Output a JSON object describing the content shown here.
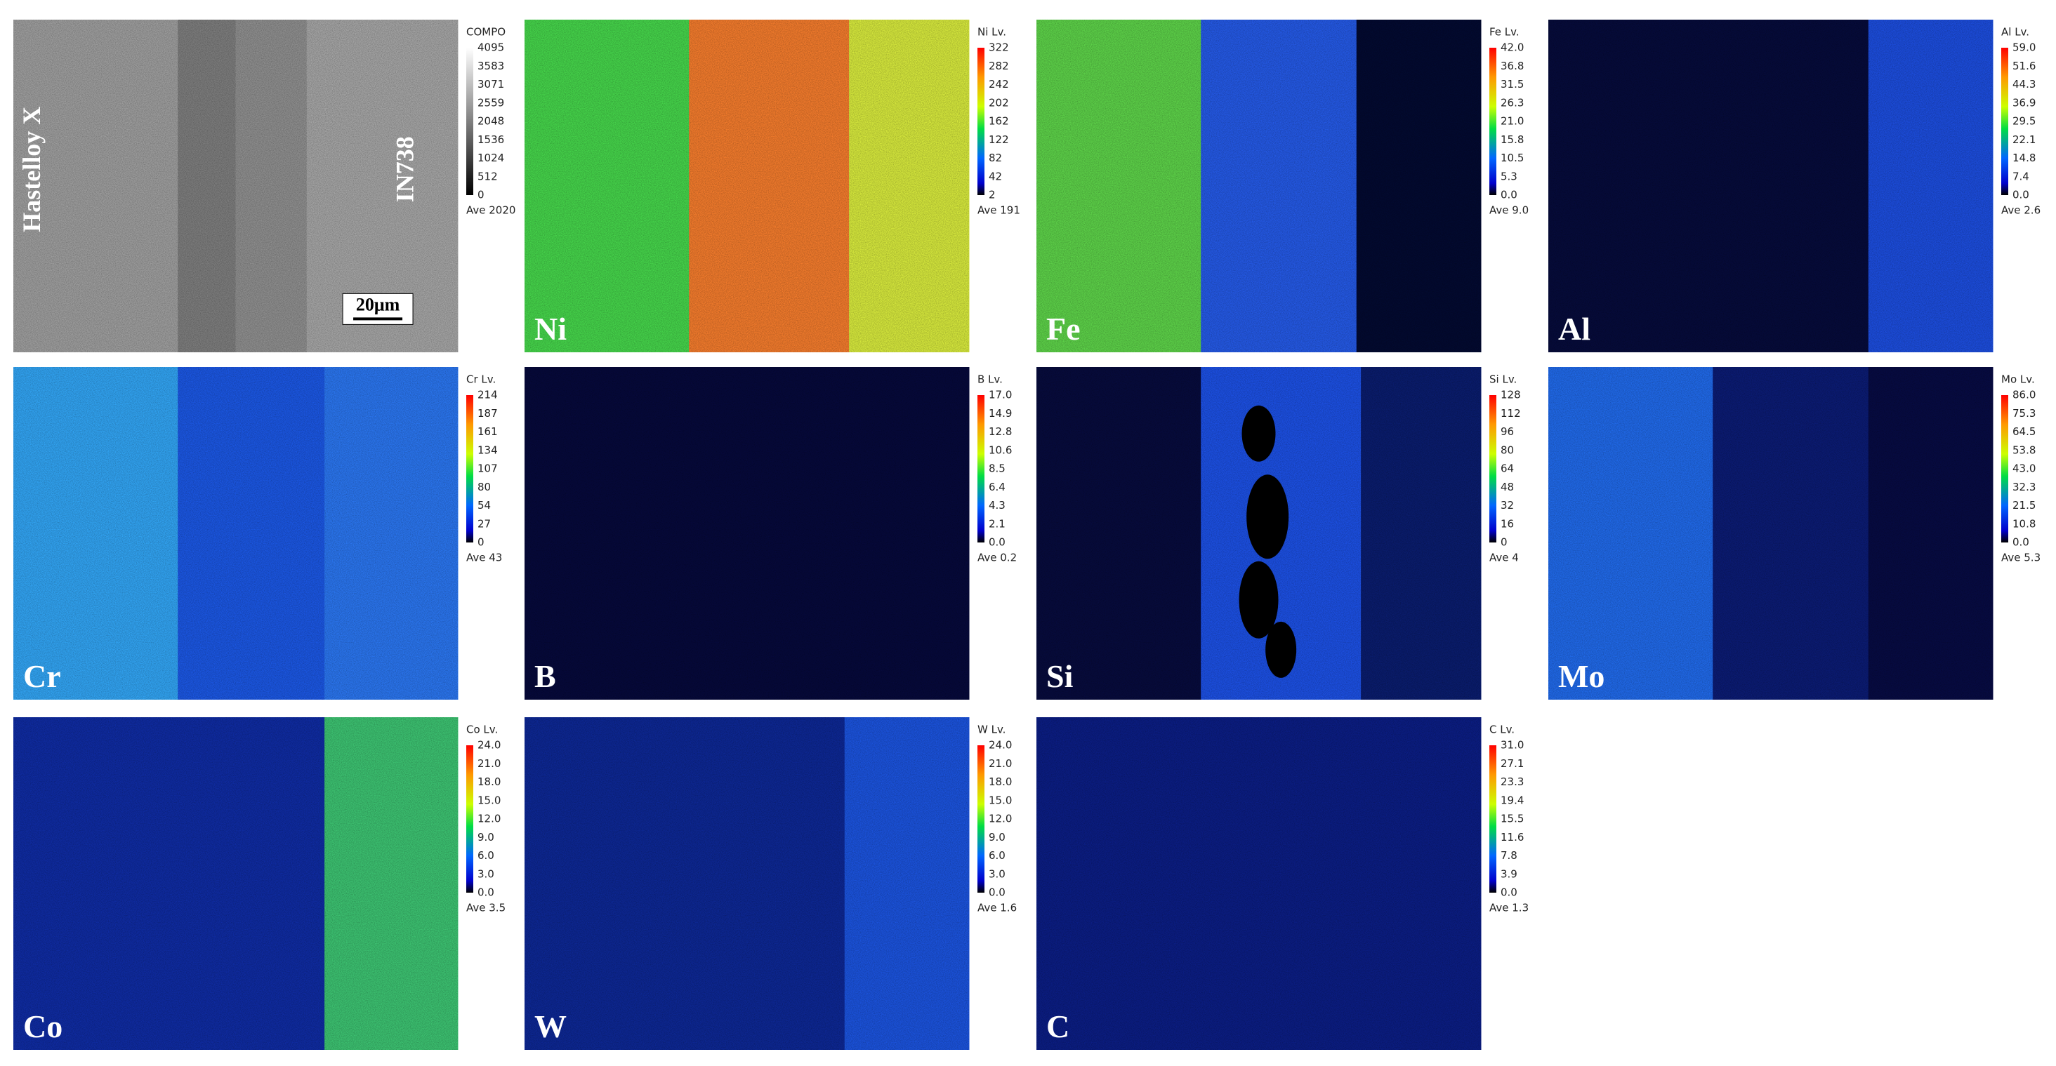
{
  "panels": [
    {
      "scale_title": "COMPO",
      "scale_ticks": [
        "4095",
        "3583",
        "3071",
        "2559",
        "2048",
        "1536",
        "1024",
        "512",
        "0"
      ],
      "average": "Ave 2020",
      "annotations": [
        "Hastelloy X",
        "IN738"
      ],
      "scale_bar": "20μm"
    },
    {
      "label": "Ni",
      "scale_title": "Ni Lv.",
      "scale_ticks": [
        "322",
        "282",
        "242",
        "202",
        "162",
        "122",
        "82",
        "42",
        "2"
      ],
      "average": "Ave 191"
    },
    {
      "label": "Fe",
      "scale_title": "Fe Lv.",
      "scale_ticks": [
        "42.0",
        "36.8",
        "31.5",
        "26.3",
        "21.0",
        "15.8",
        "10.5",
        "5.3",
        "0.0"
      ],
      "average": "Ave 9.0"
    },
    {
      "label": "Al",
      "scale_title": "Al Lv.",
      "scale_ticks": [
        "59.0",
        "51.6",
        "44.3",
        "36.9",
        "29.5",
        "22.1",
        "14.8",
        "7.4",
        "0.0"
      ],
      "average": "Ave 2.6"
    },
    {
      "label": "Cr",
      "scale_title": "Cr Lv.",
      "scale_ticks": [
        "214",
        "187",
        "161",
        "134",
        "107",
        "80",
        "54",
        "27",
        "0"
      ],
      "average": "Ave 43"
    },
    {
      "label": "B",
      "scale_title": "B Lv.",
      "scale_ticks": [
        "17.0",
        "14.9",
        "12.8",
        "10.6",
        "8.5",
        "6.4",
        "4.3",
        "2.1",
        "0.0"
      ],
      "average": "Ave 0.2"
    },
    {
      "label": "Si",
      "scale_title": "Si Lv.",
      "scale_ticks": [
        "128",
        "112",
        "96",
        "80",
        "64",
        "48",
        "32",
        "16",
        "0"
      ],
      "average": "Ave 4"
    },
    {
      "label": "Mo",
      "scale_title": "Mo Lv.",
      "scale_ticks": [
        "86.0",
        "75.3",
        "64.5",
        "53.8",
        "43.0",
        "32.3",
        "21.5",
        "10.8",
        "0.0"
      ],
      "average": "Ave 5.3"
    },
    {
      "label": "Co",
      "scale_title": "Co Lv.",
      "scale_ticks": [
        "24.0",
        "21.0",
        "18.0",
        "15.0",
        "12.0",
        "9.0",
        "6.0",
        "3.0",
        "0.0"
      ],
      "average": "Ave 3.5"
    },
    {
      "label": "W",
      "scale_title": "W Lv.",
      "scale_ticks": [
        "24.0",
        "21.0",
        "18.0",
        "15.0",
        "12.0",
        "9.0",
        "6.0",
        "3.0",
        "0.0"
      ],
      "average": "Ave 1.6"
    },
    {
      "label": "C",
      "scale_title": "C Lv.",
      "scale_ticks": [
        "31.0",
        "27.1",
        "23.3",
        "19.4",
        "15.5",
        "11.6",
        "7.8",
        "3.9",
        "0.0"
      ],
      "average": "Ave 1.3"
    }
  ]
}
